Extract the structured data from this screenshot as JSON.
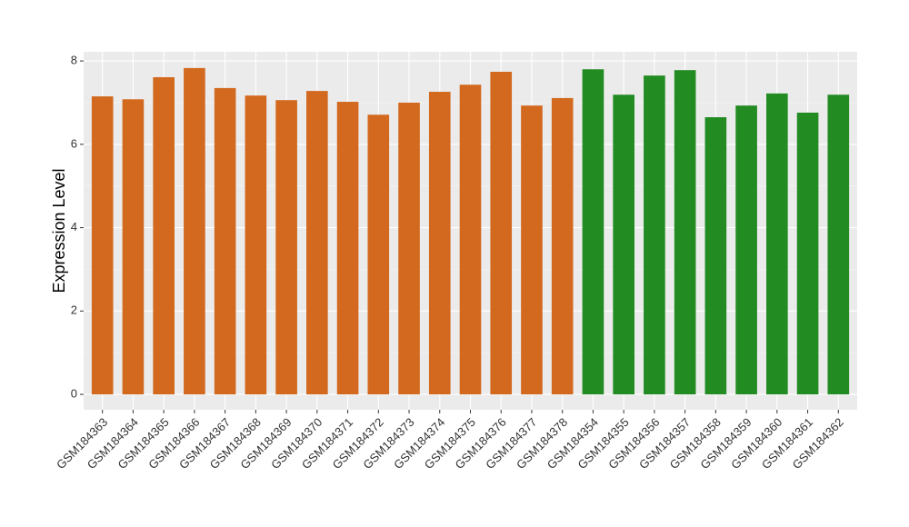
{
  "chart_data": {
    "type": "bar",
    "ylabel": "Expression Level",
    "categories": [
      "GSM184363",
      "GSM184364",
      "GSM184365",
      "GSM184366",
      "GSM184367",
      "GSM184368",
      "GSM184369",
      "GSM184370",
      "GSM184371",
      "GSM184372",
      "GSM184373",
      "GSM184374",
      "GSM184375",
      "GSM184376",
      "GSM184377",
      "GSM184378",
      "GSM184354",
      "GSM184355",
      "GSM184356",
      "GSM184357",
      "GSM184358",
      "GSM184359",
      "GSM184360",
      "GSM184361",
      "GSM184362"
    ],
    "values": [
      7.15,
      7.08,
      7.61,
      7.83,
      7.35,
      7.17,
      7.06,
      7.28,
      7.02,
      6.71,
      7.0,
      7.26,
      7.43,
      7.74,
      6.93,
      7.11,
      7.8,
      7.19,
      7.65,
      7.78,
      6.65,
      6.93,
      7.22,
      6.76,
      7.19
    ],
    "colors": [
      "#d2691e",
      "#d2691e",
      "#d2691e",
      "#d2691e",
      "#d2691e",
      "#d2691e",
      "#d2691e",
      "#d2691e",
      "#d2691e",
      "#d2691e",
      "#d2691e",
      "#d2691e",
      "#d2691e",
      "#d2691e",
      "#d2691e",
      "#d2691e",
      "#228b22",
      "#228b22",
      "#228b22",
      "#228b22",
      "#228b22",
      "#228b22",
      "#228b22",
      "#228b22",
      "#228b22"
    ],
    "ylim": [
      -0.37,
      8.22
    ],
    "yticks": [
      0,
      2,
      4,
      6,
      8
    ],
    "grid": true
  }
}
